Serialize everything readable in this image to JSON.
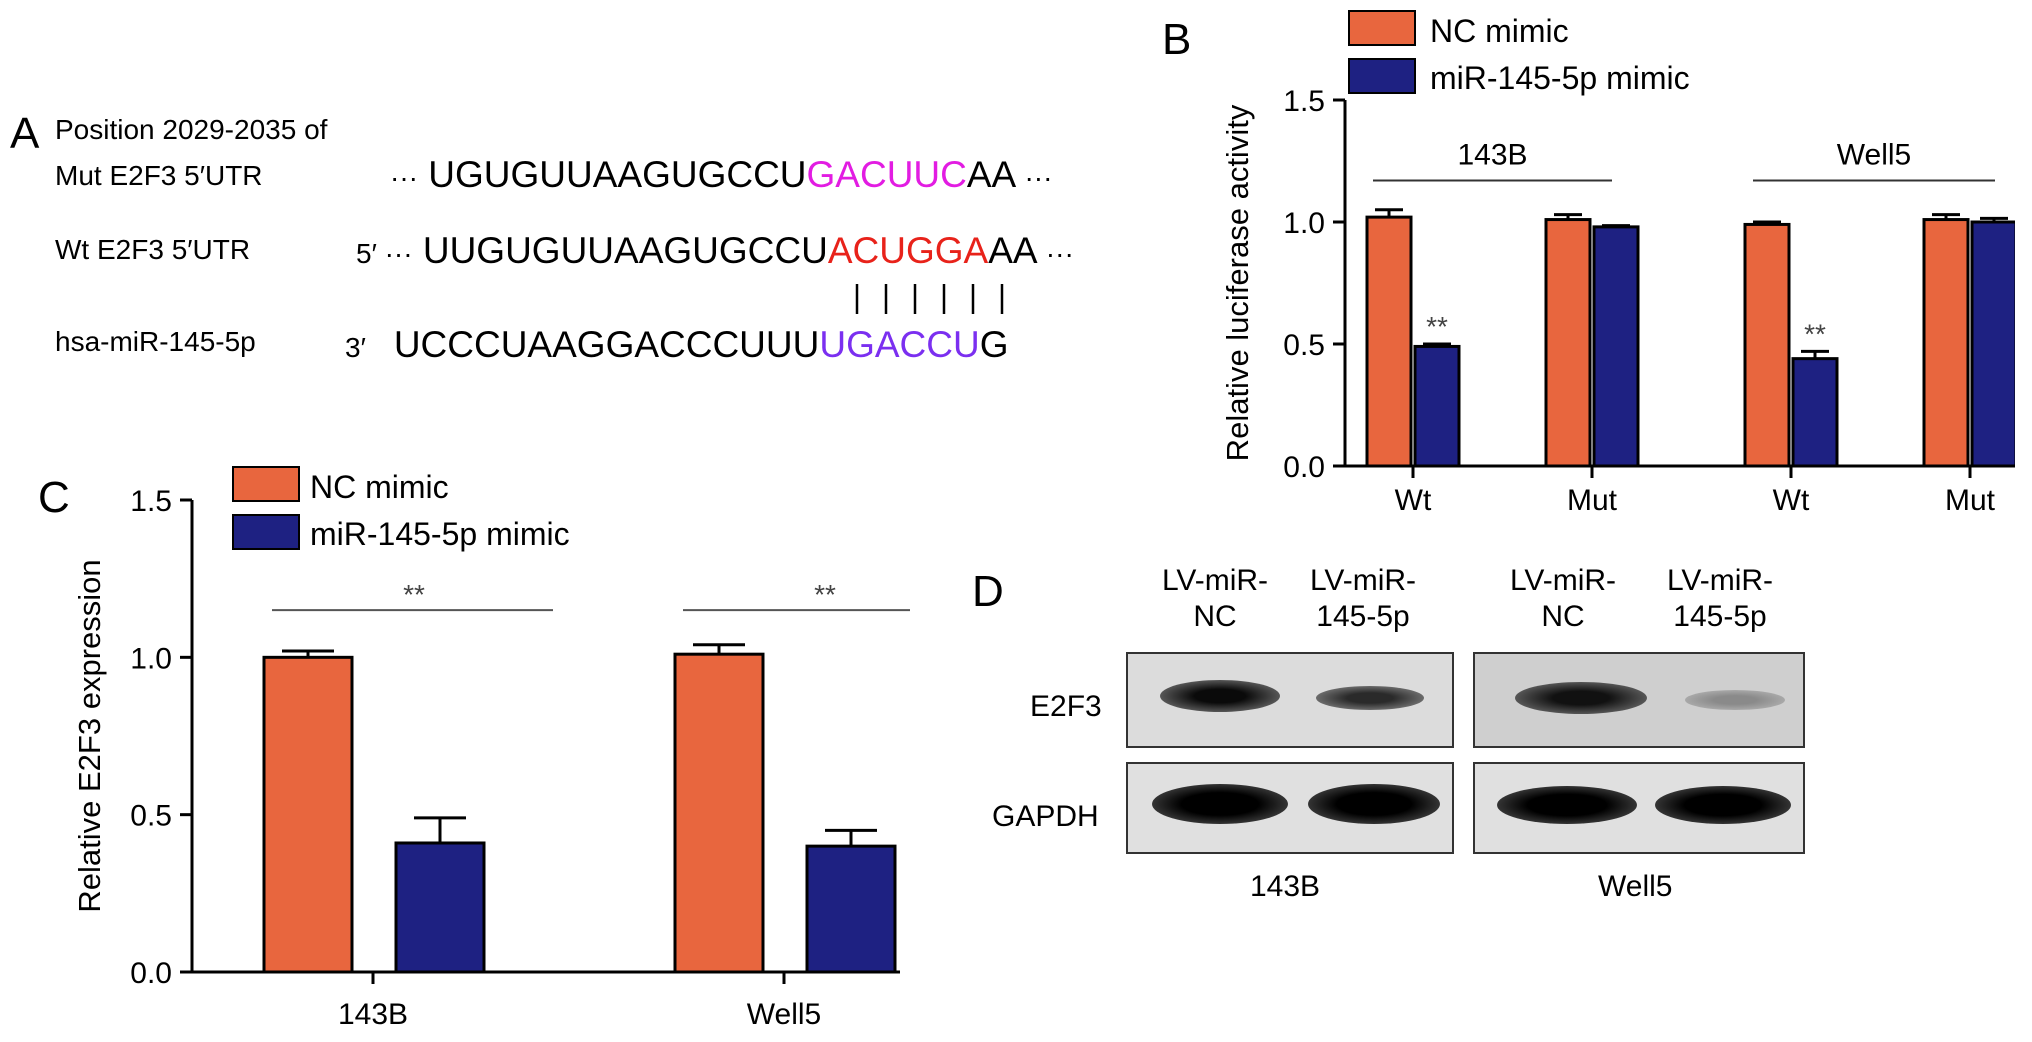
{
  "colors": {
    "nc_mimic": "#E8663E",
    "mir_mimic": "#1E2182",
    "mut_site": "#E21CE2",
    "wt_site": "#E8221A",
    "mirna_seed": "#7B2FF0"
  },
  "panel_a": {
    "letter": "A",
    "position_label": "Position 2029-2035 of",
    "mut_label": "Mut E2F3 5′UTR",
    "mut_prefix": "···",
    "mut_seq_start": "UGUGUUAAGUGCCU",
    "mut_site": "GACUUC",
    "mut_seq_end": "AA",
    "mut_suffix": "···",
    "wt_label": "Wt E2F3 5′UTR",
    "wt_prefix": "5′ ···",
    "wt_seq_start": "UUGUGUUAAGUGCCU",
    "wt_site": "ACUGGA",
    "wt_seq_end": "AA",
    "wt_suffix": "···",
    "mirna_label": "hsa-miR-145-5p",
    "mirna_prefix": "3′",
    "mirna_seq_start": "UCCCUAAGGACCCUUU",
    "mirna_seed": "UGACCU",
    "mirna_seq_end": "G"
  },
  "panel_b": {
    "letter": "B",
    "legend": [
      "NC mimic",
      "miR-145-5p mimic"
    ],
    "significance": "**"
  },
  "panel_c": {
    "letter": "C",
    "legend": [
      "NC mimic",
      "miR-145-5p mimic"
    ],
    "significance": "**"
  },
  "panel_d": {
    "letter": "D",
    "lanes": [
      "LV-miR-\nNC",
      "LV-miR-\n145-5p",
      "LV-miR-\nNC",
      "LV-miR-\n145-5p"
    ],
    "rows": [
      "E2F3",
      "GAPDH"
    ],
    "groups": [
      "143B",
      "Well5"
    ]
  },
  "chart_data": [
    {
      "type": "bar",
      "panel": "B",
      "ylabel": "Relative luciferase activity",
      "ylim": [
        0,
        1.5
      ],
      "yticks": [
        "0.0",
        "0.5",
        "1.0",
        "1.5"
      ],
      "groups": [
        "143B",
        "Well5"
      ],
      "categories": [
        "Wt",
        "Mut",
        "Wt",
        "Mut"
      ],
      "series": [
        {
          "name": "NC mimic",
          "values": [
            1.02,
            1.01,
            0.99,
            1.01
          ],
          "errors": [
            0.03,
            0.02,
            0.01,
            0.02
          ]
        },
        {
          "name": "miR-145-5p mimic",
          "values": [
            0.49,
            0.98,
            0.44,
            1.0
          ],
          "errors": [
            0.01,
            0.005,
            0.03,
            0.015
          ]
        }
      ],
      "significance": [
        "**",
        "",
        "**",
        ""
      ]
    },
    {
      "type": "bar",
      "panel": "C",
      "ylabel": "Relative E2F3 expression",
      "ylim": [
        0,
        1.5
      ],
      "yticks": [
        "0.0",
        "0.5",
        "1.0",
        "1.5"
      ],
      "categories": [
        "143B",
        "Well5"
      ],
      "series": [
        {
          "name": "NC mimic",
          "values": [
            1.0,
            1.01
          ],
          "errors": [
            0.02,
            0.03
          ]
        },
        {
          "name": "miR-145-5p mimic",
          "values": [
            0.41,
            0.4
          ],
          "errors": [
            0.08,
            0.05
          ]
        }
      ],
      "significance": [
        "**",
        "**"
      ]
    }
  ]
}
